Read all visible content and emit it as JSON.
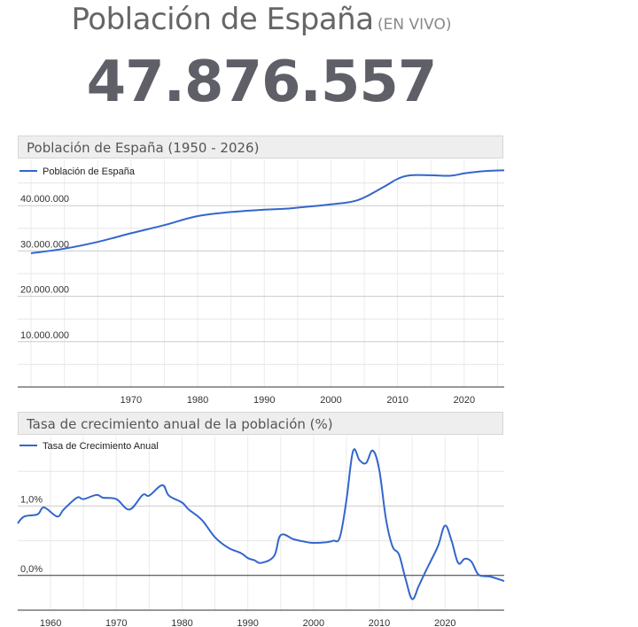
{
  "header": {
    "title": "Población de España",
    "live_label": "(EN VIVO)",
    "counter": "47.876.557"
  },
  "colors": {
    "line": "#3366cc",
    "grid": "#cccccc",
    "axis": "#333333",
    "panel": "#eeeeee"
  },
  "chart_data": [
    {
      "type": "line",
      "title": "Población de España (1950 - 2026)",
      "legend": "Población de España",
      "legend_position": "top-left",
      "xlim": [
        1953,
        2026
      ],
      "ylim": [
        0,
        50000000
      ],
      "x_ticks": [
        1970,
        1980,
        1990,
        2000,
        2010,
        2020
      ],
      "x_tick_labels": [
        "1970",
        "1980",
        "1990",
        "2000",
        "2010",
        "2020"
      ],
      "y_ticks": [
        10000000,
        20000000,
        30000000,
        40000000
      ],
      "y_tick_labels": [
        "10.000.000",
        "20.000.000",
        "30.000.000",
        "40.000.000"
      ],
      "series": [
        {
          "name": "Población de España",
          "x": [
            1955,
            1960,
            1965,
            1970,
            1975,
            1980,
            1985,
            1990,
            1993,
            1996,
            2000,
            2004,
            2008,
            2010,
            2012,
            2015,
            2018,
            2020,
            2023,
            2026
          ],
          "y": [
            29500000,
            30500000,
            32000000,
            33900000,
            35700000,
            37700000,
            38600000,
            39100000,
            39300000,
            39700000,
            40300000,
            41200000,
            44200000,
            45900000,
            46700000,
            46700000,
            46600000,
            47100000,
            47600000,
            47800000
          ]
        }
      ]
    },
    {
      "type": "line",
      "title": "Tasa de crecimiento anual de la población (%)",
      "legend": "Tasa de Crecimiento Anual",
      "legend_position": "top-left",
      "xlim": [
        1955,
        2029
      ],
      "ylim": [
        -0.5,
        2.0
      ],
      "x_ticks": [
        1960,
        1970,
        1980,
        1990,
        2000,
        2010,
        2020
      ],
      "x_tick_labels": [
        "1960",
        "1970",
        "1980",
        "1990",
        "2000",
        "2010",
        "2020"
      ],
      "y_ticks": [
        0,
        1.0
      ],
      "y_tick_labels": [
        "0,0%",
        "1,0%"
      ],
      "series": [
        {
          "name": "Tasa de Crecimiento Anual",
          "x": [
            1955,
            1956,
            1958,
            1959,
            1961,
            1962,
            1964,
            1965,
            1967,
            1968,
            1970,
            1972,
            1974,
            1975,
            1977,
            1978,
            1980,
            1981,
            1983,
            1985,
            1987,
            1989,
            1990,
            1991,
            1992,
            1994,
            1995,
            1997,
            1999,
            2000,
            2002,
            2003,
            2004,
            2005,
            2006,
            2007,
            2008,
            2009,
            2010,
            2011,
            2012,
            2013,
            2014,
            2015,
            2016,
            2017,
            2018,
            2019,
            2020,
            2021,
            2022,
            2023,
            2024,
            2025,
            2026,
            2027,
            2029
          ],
          "y": [
            0.75,
            0.85,
            0.88,
            0.98,
            0.85,
            0.95,
            1.12,
            1.1,
            1.16,
            1.12,
            1.1,
            0.95,
            1.16,
            1.15,
            1.3,
            1.15,
            1.05,
            0.95,
            0.8,
            0.55,
            0.4,
            0.32,
            0.25,
            0.22,
            0.18,
            0.28,
            0.58,
            0.52,
            0.48,
            0.47,
            0.48,
            0.5,
            0.55,
            1.08,
            1.79,
            1.66,
            1.62,
            1.8,
            1.52,
            0.82,
            0.42,
            0.3,
            -0.05,
            -0.34,
            -0.15,
            0.05,
            0.24,
            0.44,
            0.72,
            0.5,
            0.18,
            0.24,
            0.2,
            0.02,
            -0.01,
            -0.02,
            -0.08
          ]
        }
      ]
    }
  ]
}
